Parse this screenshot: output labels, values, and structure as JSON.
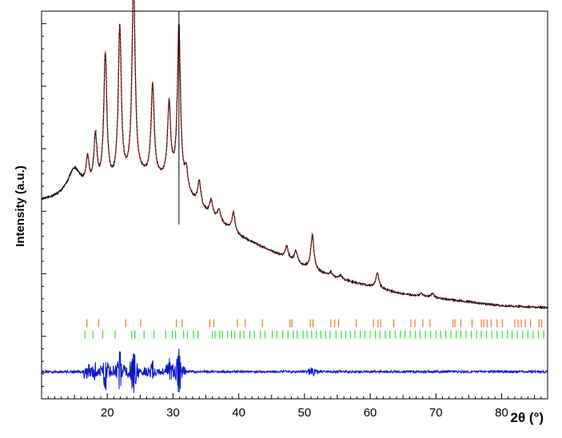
{
  "chart_data": {
    "type": "line",
    "title": "",
    "xlabel": "2θ (°)",
    "ylabel": "Intensity (a.u.)",
    "xlim": [
      10,
      87
    ],
    "ylim": [
      0,
      1
    ],
    "x_ticks": [
      "20",
      "30",
      "40",
      "50",
      "60",
      "70",
      "80"
    ],
    "grid": false,
    "legend": "none",
    "peaks_observed": [
      {
        "x": 15.0,
        "h": 0.07
      },
      {
        "x": 17.0,
        "h": 0.07
      },
      {
        "x": 18.2,
        "h": 0.13
      },
      {
        "x": 19.7,
        "h": 0.34
      },
      {
        "x": 21.9,
        "h": 0.39
      },
      {
        "x": 24.0,
        "h": 0.52
      },
      {
        "x": 26.9,
        "h": 0.24
      },
      {
        "x": 29.4,
        "h": 0.19
      },
      {
        "x": 30.9,
        "h": 0.41
      },
      {
        "x": 32.0,
        "h": 0.05
      },
      {
        "x": 34.0,
        "h": 0.06
      },
      {
        "x": 35.8,
        "h": 0.04
      },
      {
        "x": 37.0,
        "h": 0.03
      },
      {
        "x": 39.2,
        "h": 0.05
      },
      {
        "x": 47.3,
        "h": 0.03
      },
      {
        "x": 48.7,
        "h": 0.03
      },
      {
        "x": 51.2,
        "h": 0.09
      },
      {
        "x": 54.0,
        "h": 0.01
      },
      {
        "x": 55.5,
        "h": 0.01
      },
      {
        "x": 61.1,
        "h": 0.04
      },
      {
        "x": 67.8,
        "h": 0.008
      },
      {
        "x": 69.5,
        "h": 0.01
      }
    ],
    "background_anchors": {
      "x": [
        10,
        15,
        20,
        25,
        30,
        35,
        40,
        45,
        50,
        55,
        60,
        65,
        70,
        75,
        80,
        87
      ],
      "y": [
        0.51,
        0.52,
        0.54,
        0.57,
        0.56,
        0.48,
        0.42,
        0.38,
        0.34,
        0.31,
        0.29,
        0.27,
        0.26,
        0.25,
        0.24,
        0.235
      ]
    },
    "series": [
      {
        "type": "line",
        "role": "observed",
        "color": "#000000"
      },
      {
        "type": "line",
        "role": "calculated",
        "color": "#d42020"
      },
      {
        "type": "line",
        "role": "difference",
        "color": "#0b18c8",
        "offset": 0.07
      }
    ],
    "reflections": [
      {
        "color": "#f07820",
        "row": 0.195,
        "positions": [
          16.9,
          18.7,
          22.8,
          25.1,
          30.5,
          31.4,
          35.6,
          36.2,
          39.8,
          41.0,
          43.6,
          47.8,
          48.1,
          50.9,
          51.3,
          54.0,
          54.6,
          55.2,
          57.9,
          60.5,
          61.2,
          61.6,
          63.6,
          66.2,
          66.8,
          68.0,
          69.1,
          72.6,
          72.9,
          73.8,
          75.5,
          76.9,
          77.3,
          77.8,
          78.4,
          79.3,
          80.1,
          82.0,
          82.5,
          83.0,
          83.6,
          84.4,
          85.7,
          86.1
        ]
      },
      {
        "color": "#22e636",
        "row": 0.166,
        "positions": [
          16.6,
          17.8,
          19.3,
          21.2,
          23.7,
          24.2,
          25.6,
          27.1,
          28.9,
          29.9,
          30.4,
          31.6,
          32.2,
          33.1,
          33.8,
          36.0,
          36.4,
          37.1,
          37.5,
          38.3,
          38.9,
          39.4,
          40.2,
          40.8,
          41.7,
          42.4,
          43.3,
          44.0,
          45.1,
          45.8,
          46.7,
          47.5,
          48.3,
          48.9,
          49.8,
          50.4,
          51.1,
          51.8,
          52.5,
          53.2,
          53.9,
          54.8,
          55.6,
          56.3,
          57.0,
          57.7,
          58.5,
          59.2,
          60.0,
          60.8,
          61.5,
          62.3,
          63.0,
          63.8,
          64.6,
          65.3,
          66.1,
          66.9,
          67.6,
          68.4,
          69.2,
          70.0,
          70.7,
          71.5,
          72.3,
          73.1,
          73.8,
          74.6,
          75.4,
          76.2,
          76.9,
          77.7,
          78.5,
          79.3,
          80.1,
          80.9,
          81.6,
          82.4,
          83.2,
          84.0,
          84.8,
          85.6,
          86.4
        ]
      }
    ]
  }
}
